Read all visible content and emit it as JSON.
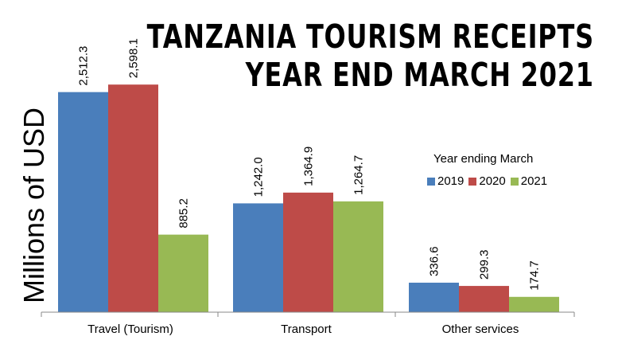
{
  "chart_data": {
    "type": "bar",
    "title_lines": [
      "TANZANIA TOURISM RECEIPTS",
      "YEAR END MARCH 2021"
    ],
    "ylabel": "Millions of USD",
    "categories": [
      "Travel (Tourism)",
      "Transport",
      "Other services"
    ],
    "series": [
      {
        "name": "2019",
        "color": "#4a7ebb",
        "values": [
          2512.3,
          1242.0,
          336.6
        ],
        "labels": [
          "2,512.3",
          "1,242.0",
          "336.6"
        ]
      },
      {
        "name": "2020",
        "color": "#be4b48",
        "values": [
          2598.1,
          1364.9,
          299.3
        ],
        "labels": [
          "2,598.1",
          "1,364.9",
          "299.3"
        ]
      },
      {
        "name": "2021",
        "color": "#98b954",
        "values": [
          885.2,
          1264.7,
          174.7
        ],
        "labels": [
          "885.2",
          "1,264.7",
          "174.7"
        ]
      }
    ],
    "legend_title": "Year ending  March",
    "ylim": [
      0,
      2800
    ]
  }
}
